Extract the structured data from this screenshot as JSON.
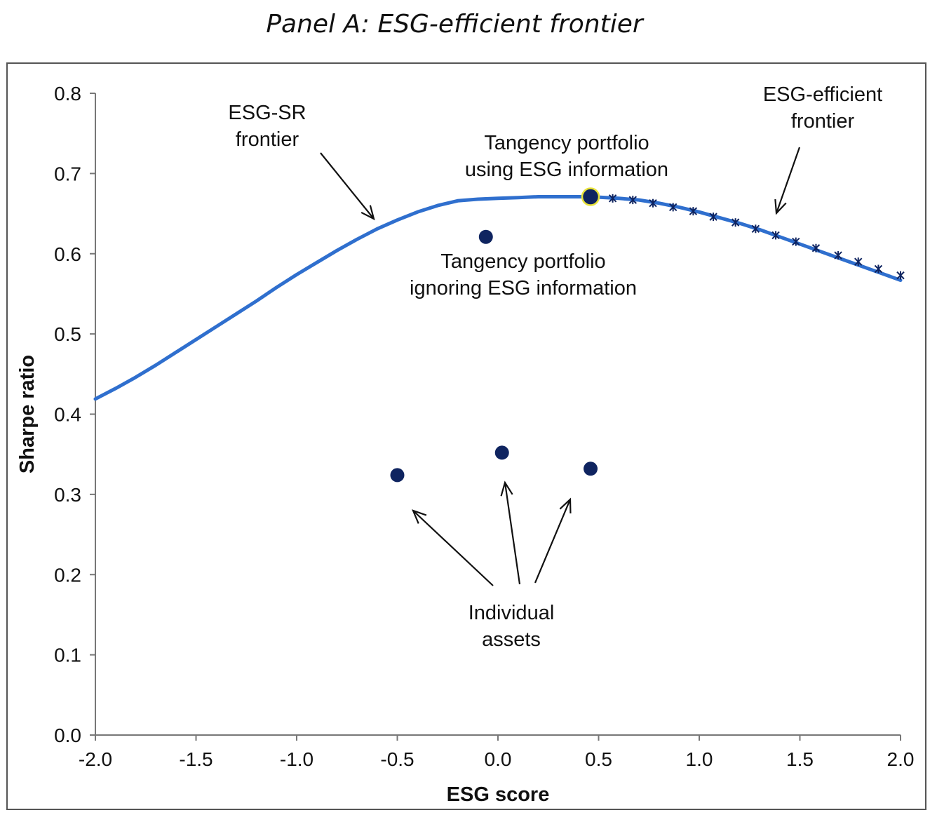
{
  "chart_data": {
    "type": "line",
    "title": "Panel A: ESG-efficient frontier",
    "xlabel": "ESG score",
    "ylabel": "Sharpe ratio",
    "xlim": [
      -2.0,
      2.0
    ],
    "ylim": [
      0.0,
      0.8
    ],
    "x_ticks": [
      "-2.0",
      "-1.5",
      "-1.0",
      "-0.5",
      "0.0",
      "0.5",
      "1.0",
      "1.5",
      "2.0"
    ],
    "y_ticks": [
      "0.0",
      "0.1",
      "0.2",
      "0.3",
      "0.4",
      "0.5",
      "0.6",
      "0.7",
      "0.8"
    ],
    "grid": false,
    "colors": {
      "frontier": "#2f6fce",
      "points": "#0f2460",
      "tangency_outline": "#e8e23a",
      "markers": "#0f2460"
    },
    "series": [
      {
        "name": "ESG-SR frontier",
        "x": [
          -2.0,
          -1.9,
          -1.8,
          -1.7,
          -1.6,
          -1.5,
          -1.4,
          -1.3,
          -1.2,
          -1.1,
          -1.0,
          -0.9,
          -0.8,
          -0.7,
          -0.6,
          -0.5,
          -0.4,
          -0.3,
          -0.2,
          -0.1,
          0.0,
          0.1,
          0.2,
          0.3,
          0.4,
          0.46,
          0.6,
          0.7,
          0.8,
          0.9,
          1.0,
          1.1,
          1.2,
          1.3,
          1.4,
          1.5,
          1.6,
          1.7,
          1.8,
          1.9,
          2.0
        ],
        "y": [
          0.419,
          0.432,
          0.446,
          0.461,
          0.477,
          0.493,
          0.509,
          0.525,
          0.541,
          0.558,
          0.574,
          0.589,
          0.604,
          0.618,
          0.631,
          0.642,
          0.652,
          0.66,
          0.666,
          0.668,
          0.669,
          0.67,
          0.671,
          0.671,
          0.671,
          0.671,
          0.669,
          0.667,
          0.663,
          0.658,
          0.652,
          0.645,
          0.638,
          0.63,
          0.621,
          0.612,
          0.603,
          0.594,
          0.585,
          0.576,
          0.567
        ]
      },
      {
        "name": "ESG-efficient frontier",
        "x": [
          0.57,
          0.67,
          0.77,
          0.87,
          0.97,
          1.07,
          1.18,
          1.28,
          1.38,
          1.48,
          1.58,
          1.69,
          1.79,
          1.89,
          2.0
        ],
        "y": [
          0.669,
          0.667,
          0.663,
          0.658,
          0.653,
          0.646,
          0.639,
          0.631,
          0.623,
          0.615,
          0.607,
          0.598,
          0.59,
          0.581,
          0.573
        ]
      }
    ],
    "points": [
      {
        "label": "Tangency portfolio using ESG information",
        "x": 0.46,
        "y": 0.671
      },
      {
        "label": "Tangency portfolio ignoring ESG information",
        "x": -0.06,
        "y": 0.621
      },
      {
        "label": "Individual assets",
        "x": -0.5,
        "y": 0.324
      },
      {
        "label": "Individual assets",
        "x": 0.02,
        "y": 0.352
      },
      {
        "label": "Individual assets",
        "x": 0.46,
        "y": 0.332
      }
    ],
    "annotations": {
      "esg_sr": [
        "ESG-SR",
        "frontier"
      ],
      "esg_eff": [
        "ESG-efficient",
        "frontier"
      ],
      "tan_using": [
        "Tangency portfolio",
        "using ESG information"
      ],
      "tan_ignoring": [
        "Tangency portfolio",
        "ignoring ESG information"
      ],
      "assets": [
        "Individual",
        "assets"
      ]
    }
  }
}
